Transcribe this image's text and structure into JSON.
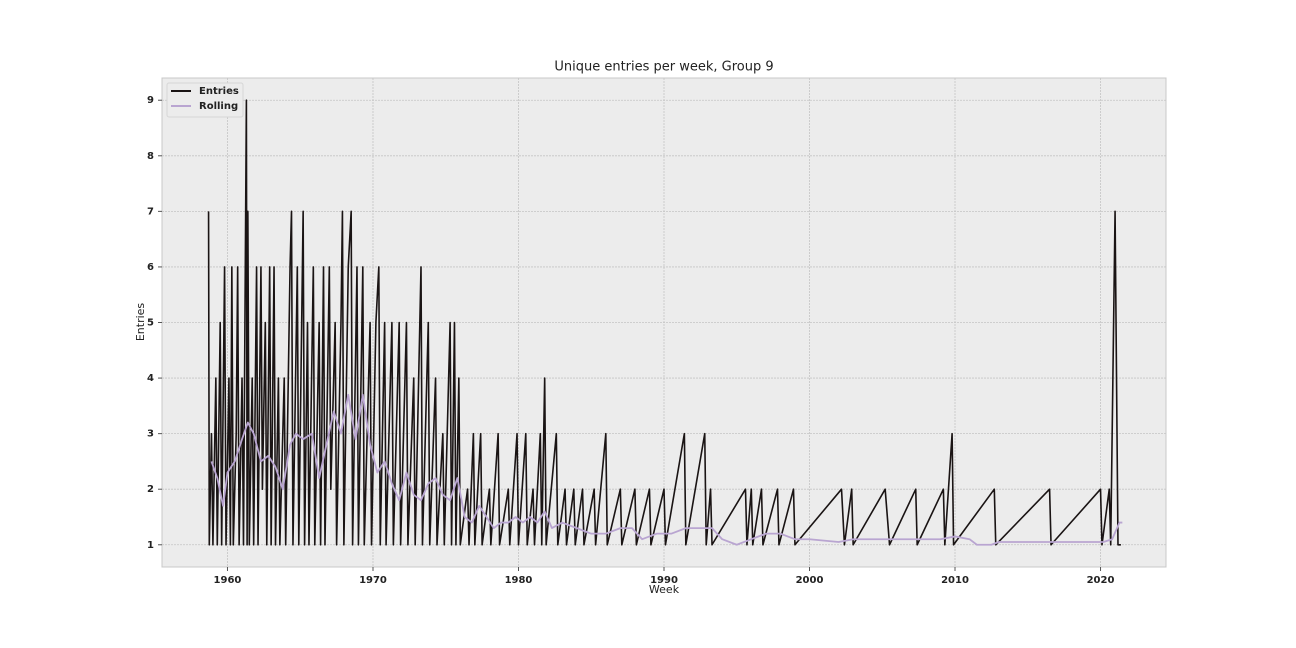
{
  "chart_data": {
    "type": "line",
    "title": "Unique entries per week, Group 9",
    "xlabel": "Week",
    "ylabel": "Entries",
    "xlim": [
      1955.5,
      2024.5
    ],
    "xticks": [
      1960,
      1970,
      1980,
      1990,
      2000,
      2010,
      2020
    ],
    "ylim": [
      0.6,
      9.4
    ],
    "yticks": [
      1,
      2,
      3,
      4,
      5,
      6,
      7,
      8,
      9
    ],
    "grid": true,
    "legend": "upper left",
    "series": [
      {
        "name": "Entries",
        "color": "#1a1414",
        "x": [
          1958.7,
          1958.75,
          1958.9,
          1959.0,
          1959.2,
          1959.3,
          1959.5,
          1959.6,
          1959.8,
          1959.9,
          1960.1,
          1960.2,
          1960.3,
          1960.4,
          1960.6,
          1960.7,
          1960.8,
          1961.0,
          1961.1,
          1961.3,
          1961.35,
          1961.4,
          1961.5,
          1961.7,
          1961.8,
          1962.0,
          1962.1,
          1962.3,
          1962.4,
          1962.6,
          1962.7,
          1962.9,
          1963.0,
          1963.2,
          1963.3,
          1963.5,
          1963.6,
          1963.9,
          1964.0,
          1964.3,
          1964.4,
          1964.5,
          1964.8,
          1964.9,
          1965.2,
          1965.3,
          1965.5,
          1965.6,
          1965.9,
          1966.0,
          1966.3,
          1966.4,
          1966.6,
          1966.7,
          1967.0,
          1967.1,
          1967.4,
          1967.5,
          1967.8,
          1967.9,
          1968.0,
          1968.3,
          1968.5,
          1968.6,
          1968.9,
          1969.0,
          1969.3,
          1969.4,
          1969.8,
          1969.9,
          1970.2,
          1970.4,
          1970.5,
          1970.8,
          1970.9,
          1971.3,
          1971.4,
          1971.8,
          1971.9,
          1972.3,
          1972.4,
          1972.8,
          1972.9,
          1973.3,
          1973.4,
          1973.8,
          1973.9,
          1974.3,
          1974.4,
          1974.8,
          1974.9,
          1975.3,
          1975.4,
          1975.6,
          1975.7,
          1975.9,
          1976.0,
          1976.5,
          1976.6,
          1976.9,
          1977.0,
          1977.4,
          1977.5,
          1978.0,
          1978.1,
          1978.6,
          1978.7,
          1979.3,
          1979.4,
          1979.9,
          1980.0,
          1980.5,
          1980.6,
          1981.0,
          1981.1,
          1981.5,
          1981.6,
          1981.8,
          1981.9,
          1982.6,
          1982.7,
          1983.2,
          1983.3,
          1983.8,
          1983.9,
          1984.4,
          1984.5,
          1985.2,
          1985.3,
          1986.0,
          1986.1,
          1987.0,
          1987.1,
          1988.0,
          1988.1,
          1989.0,
          1989.1,
          1990.0,
          1990.1,
          1991.4,
          1991.5,
          1992.8,
          1992.9,
          1993.2,
          1993.3,
          1995.6,
          1995.7,
          1996.0,
          1996.1,
          1996.7,
          1996.8,
          1997.8,
          1997.9,
          1998.9,
          1999.0,
          2002.2,
          2002.4,
          2002.9,
          2003.0,
          2005.2,
          2005.5,
          2007.3,
          2007.4,
          2009.2,
          2009.3,
          2009.8,
          2009.9,
          2012.7,
          2012.8,
          2016.5,
          2016.6,
          2020.0,
          2020.1,
          2020.6,
          2020.7,
          2021.0,
          2021.2,
          2021.4
        ],
        "values": [
          7,
          1,
          3,
          1,
          4,
          1,
          5,
          1,
          6,
          1,
          4,
          1,
          6,
          1,
          3,
          6,
          1,
          4,
          1,
          9,
          1,
          7,
          1,
          4,
          1,
          6,
          1,
          6,
          2,
          5,
          1,
          6,
          1,
          6,
          1,
          4,
          1,
          4,
          1,
          6,
          7,
          1,
          6,
          1,
          7,
          1,
          5,
          1,
          6,
          1,
          5,
          1,
          6,
          1,
          6,
          2,
          5,
          1,
          5,
          7,
          1,
          6,
          7,
          1,
          6,
          1,
          6,
          1,
          5,
          1,
          5,
          6,
          1,
          5,
          1,
          5,
          1,
          5,
          1,
          5,
          1,
          4,
          1,
          6,
          1,
          5,
          1,
          4,
          1,
          3,
          1,
          5,
          1,
          5,
          1,
          4,
          1,
          2,
          1,
          3,
          1,
          3,
          1,
          2,
          1,
          3,
          1,
          2,
          1,
          3,
          1,
          3,
          1,
          2,
          1,
          3,
          1,
          4,
          1,
          3,
          1,
          2,
          1,
          2,
          1,
          2,
          1,
          2,
          1,
          3,
          1,
          2,
          1,
          2,
          1,
          2,
          1,
          2,
          1,
          3,
          1,
          3,
          1,
          2,
          1,
          2,
          1,
          2,
          1,
          2,
          1,
          2,
          1,
          2,
          1,
          2,
          1,
          2,
          1,
          2,
          1,
          2,
          1,
          2,
          1,
          3,
          1,
          2,
          1,
          2,
          1,
          2,
          1,
          2,
          1,
          7,
          1,
          1
        ]
      },
      {
        "name": "Rolling",
        "color": "#b9a5d1",
        "x": [
          1958.9,
          1959.3,
          1959.7,
          1960.0,
          1960.5,
          1961.0,
          1961.4,
          1961.8,
          1962.3,
          1962.8,
          1963.3,
          1963.8,
          1964.3,
          1964.7,
          1965.2,
          1965.8,
          1966.3,
          1966.8,
          1967.3,
          1967.8,
          1968.3,
          1968.8,
          1969.3,
          1969.8,
          1970.3,
          1970.8,
          1971.3,
          1971.8,
          1972.3,
          1972.8,
          1973.3,
          1973.8,
          1974.3,
          1974.8,
          1975.3,
          1975.8,
          1976.3,
          1976.8,
          1977.3,
          1977.8,
          1978.3,
          1978.8,
          1979.3,
          1979.8,
          1980.3,
          1980.8,
          1981.3,
          1981.8,
          1982.3,
          1983.0,
          1984.0,
          1985.0,
          1986.0,
          1987.0,
          1987.8,
          1988.5,
          1989.5,
          1990.5,
          1991.5,
          1992.5,
          1993.3,
          1994.0,
          1995.0,
          1996.0,
          1997.0,
          1998.0,
          1999.0,
          2000.0,
          2002.0,
          2003.0,
          2005.0,
          2007.0,
          2009.0,
          2010.0,
          2011.0,
          2011.5,
          2012.5,
          2013.0,
          2016.5,
          2019.5,
          2020.2,
          2020.8,
          2021.3,
          2021.5
        ],
        "values": [
          2.5,
          2.2,
          1.7,
          2.3,
          2.5,
          2.9,
          3.2,
          3.0,
          2.5,
          2.6,
          2.4,
          2.0,
          2.8,
          3.0,
          2.9,
          3.0,
          2.2,
          2.8,
          3.4,
          3.0,
          3.7,
          2.9,
          3.7,
          2.8,
          2.3,
          2.5,
          2.1,
          1.8,
          2.3,
          1.9,
          1.8,
          2.1,
          2.2,
          1.9,
          1.8,
          2.2,
          1.5,
          1.4,
          1.7,
          1.5,
          1.3,
          1.4,
          1.4,
          1.5,
          1.4,
          1.5,
          1.4,
          1.6,
          1.3,
          1.4,
          1.3,
          1.2,
          1.2,
          1.3,
          1.3,
          1.1,
          1.2,
          1.2,
          1.3,
          1.3,
          1.3,
          1.1,
          1.0,
          1.1,
          1.2,
          1.2,
          1.1,
          1.1,
          1.05,
          1.1,
          1.1,
          1.1,
          1.1,
          1.15,
          1.1,
          1.0,
          1.0,
          1.05,
          1.05,
          1.05,
          1.05,
          1.1,
          1.4,
          1.4
        ]
      }
    ]
  }
}
